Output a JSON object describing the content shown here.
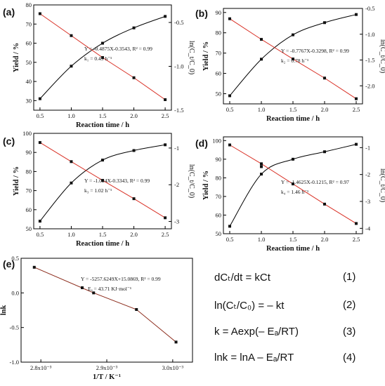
{
  "chart_data": [
    {
      "panel": "(a)",
      "type": "line",
      "xlabel": "Reaction time / h",
      "ylabel": "Yield / %",
      "y2label": "ln(C_t/C_0)",
      "xlim": [
        0.4,
        2.6
      ],
      "ylim": [
        25,
        80
      ],
      "y2lim": [
        -1.5,
        -0.3
      ],
      "x_ticks": [
        "0.5",
        "1.0",
        "1.5",
        "2.0",
        "2.5"
      ],
      "y_ticks": [
        "30",
        "40",
        "50",
        "60",
        "70",
        "80"
      ],
      "y2_ticks": [
        "-0.5",
        "-1.0",
        "-1.5"
      ],
      "series": [
        {
          "axis": "left",
          "color": "#000000",
          "x": [
            0.5,
            1.0,
            1.5,
            2.0,
            2.5
          ],
          "values": [
            31,
            48,
            60,
            68,
            74
          ]
        },
        {
          "axis": "right",
          "color": "#d93025",
          "x": [
            0.5,
            1.0,
            1.5,
            2.0,
            2.5
          ],
          "values": [
            -0.4,
            -0.65,
            -0.9,
            -1.13,
            -1.38
          ]
        }
      ],
      "annotation_eq": "Y = -0.4875X-0.3543, R² = 0.99",
      "annotation_k": "k₁ = 0.49 h⁻¹"
    },
    {
      "panel": "(b)",
      "type": "line",
      "xlabel": "Reaction time / h",
      "ylabel": "Yield / %",
      "y2label": "ln(C_t/C_0)",
      "xlim": [
        0.4,
        2.6
      ],
      "ylim": [
        45,
        92
      ],
      "y2lim": [
        -2.35,
        -0.5
      ],
      "x_ticks": [
        "0.5",
        "1.0",
        "1.5",
        "2.0",
        "2.5"
      ],
      "y_ticks": [
        "50",
        "60",
        "70",
        "80",
        "90"
      ],
      "y2_ticks": [
        "-0.5",
        "-1.0",
        "-1.5",
        "-2.0"
      ],
      "series": [
        {
          "axis": "left",
          "color": "#000000",
          "x": [
            0.5,
            1.0,
            1.5,
            2.0,
            2.5
          ],
          "values": [
            49,
            67,
            79,
            85,
            89
          ]
        },
        {
          "axis": "right",
          "color": "#d93025",
          "x": [
            0.5,
            1.0,
            1.5,
            2.0,
            2.5
          ],
          "values": [
            -0.7,
            -1.1,
            -1.48,
            -1.85,
            -2.25
          ]
        }
      ],
      "annotation_eq": "Y = -0.7767X-0.3298, R² = 0.99",
      "annotation_k": "k₂ = 0.78 h⁻¹"
    },
    {
      "panel": "(c)",
      "type": "line",
      "xlabel": "Reaction time / h",
      "ylabel": "Yield / %",
      "y2label": "ln(C_t/C_0)",
      "xlim": [
        0.4,
        2.6
      ],
      "ylim": [
        50,
        100
      ],
      "y2lim": [
        -3.2,
        -0.6
      ],
      "x_ticks": [
        "0.5",
        "1.0",
        "1.5",
        "2.0",
        "2.5"
      ],
      "y_ticks": [
        "50",
        "60",
        "70",
        "80",
        "90",
        "100"
      ],
      "y2_ticks": [
        "-1",
        "-2",
        "-3"
      ],
      "series": [
        {
          "axis": "left",
          "color": "#000000",
          "x": [
            0.5,
            1.0,
            1.5,
            2.0,
            2.5
          ],
          "values": [
            54,
            74,
            86,
            91,
            94
          ]
        },
        {
          "axis": "right",
          "color": "#d93025",
          "x": [
            0.5,
            1.0,
            1.5,
            2.0,
            2.5
          ],
          "values": [
            -0.85,
            -1.37,
            -1.88,
            -2.38,
            -2.9
          ]
        }
      ],
      "annotation_eq": "Y = -1.024X-0.3343, R² = 0.99",
      "annotation_k": "k₃ = 1.02 h⁻¹"
    },
    {
      "panel": "(d)",
      "type": "line",
      "xlabel": "Reaction time / h",
      "ylabel": "Yield / %",
      "y2label": "ln(C_t/C_0)",
      "xlim": [
        0.4,
        2.6
      ],
      "ylim": [
        50,
        102
      ],
      "y2lim": [
        -4.2,
        -0.6
      ],
      "x_ticks": [
        "0.5",
        "1.0",
        "1.5",
        "2.0",
        "2.5"
      ],
      "y_ticks": [
        "50",
        "60",
        "70",
        "80",
        "90",
        "100"
      ],
      "y2_ticks": [
        "-1",
        "-2",
        "-3",
        "-4"
      ],
      "series": [
        {
          "axis": "left",
          "color": "#000000",
          "x": [
            0.5,
            1.0,
            1.5,
            2.0,
            2.5
          ],
          "values": [
            54,
            82,
            90,
            94,
            98
          ]
        },
        {
          "axis": "right",
          "color": "#d93025",
          "x": [
            0.5,
            1.0,
            1.5,
            2.0,
            2.5
          ],
          "values": [
            -0.9,
            -1.6,
            -2.35,
            -3.1,
            -3.82
          ]
        },
        {
          "axis": "left",
          "color": "#000000",
          "markers_only": true,
          "x": [
            1.0
          ],
          "values": [
            86
          ]
        }
      ],
      "annotation_eq": "Y = -1.4625X-0.1215, R² = 0.97",
      "annotation_k": "k₄ = 1.46 h⁻¹"
    },
    {
      "panel": "(e)",
      "type": "line",
      "xlabel": "1/T / K⁻¹",
      "ylabel": "lnk",
      "xlim": [
        0.00277,
        0.00303
      ],
      "ylim": [
        -1.0,
        0.5
      ],
      "x_ticks": [
        "2.8x10⁻³",
        "2.9x10⁻³",
        "3.0x10⁻³"
      ],
      "y_ticks": [
        "0.5",
        "0.0",
        "-0.5",
        "-1.0"
      ],
      "series": [
        {
          "axis": "left",
          "color": "#8b2a1a",
          "x": [
            0.00279,
            0.00288,
            0.002945,
            0.003005
          ],
          "values": [
            0.37,
            0.0,
            -0.24,
            -0.71
          ]
        }
      ],
      "annotation_eq": "Y = -5257.6249X+15.0869, R² = 0.99",
      "annotation_k": "Eₐ = 43.71 KJ·mol⁻¹"
    }
  ],
  "equations": [
    {
      "text": "dCₜ/dt = kCt",
      "num": "(1)"
    },
    {
      "text": "ln(Cₜ/C₀) = – kt",
      "num": "(2)"
    },
    {
      "text": "k = Aexp(– Eₐ/RT)",
      "num": "(3)"
    },
    {
      "text": "lnk = lnA – Eₐ/RT",
      "num": "(4)"
    }
  ]
}
